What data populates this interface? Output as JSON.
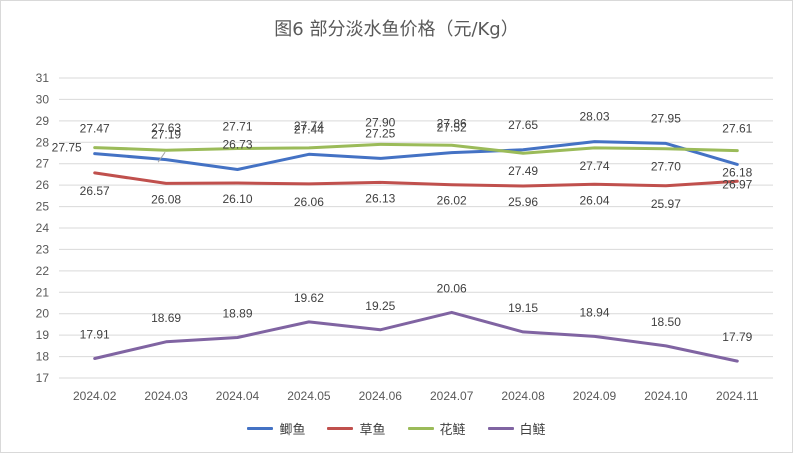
{
  "chart_data": {
    "type": "line",
    "title": "图6  部分淡水鱼价格（元/Kg）",
    "categories": [
      "2024.02",
      "2024.03",
      "2024.04",
      "2024.05",
      "2024.06",
      "2024.07",
      "2024.08",
      "2024.09",
      "2024.10",
      "2024.11"
    ],
    "ylim": [
      17,
      31
    ],
    "yticks": [
      17,
      18,
      19,
      20,
      21,
      22,
      23,
      24,
      25,
      26,
      27,
      28,
      29,
      30,
      31
    ],
    "grid": true,
    "legend_position": "bottom",
    "series": [
      {
        "name": "鲫鱼",
        "color": "#4472c4",
        "values": [
          27.47,
          27.19,
          26.73,
          27.44,
          27.25,
          27.52,
          27.65,
          28.03,
          27.95,
          26.97
        ],
        "labels": [
          "27.47",
          "27.19",
          "26.73",
          "27.44",
          "27.25",
          "27.52",
          "27.65",
          "28.03",
          "27.95",
          "26.97"
        ]
      },
      {
        "name": "草鱼",
        "color": "#c0504d",
        "values": [
          26.57,
          26.08,
          26.1,
          26.06,
          26.13,
          26.02,
          25.96,
          26.04,
          25.97,
          26.18
        ],
        "labels": [
          "26.57",
          "26.08",
          "26.10",
          "26.06",
          "26.13",
          "26.02",
          "25.96",
          "26.04",
          "25.97",
          "26.18"
        ]
      },
      {
        "name": "花鲢",
        "color": "#9bbb59",
        "values": [
          27.75,
          27.63,
          27.71,
          27.74,
          27.9,
          27.86,
          27.49,
          27.74,
          27.7,
          27.61
        ],
        "labels": [
          "27.75",
          "27.63",
          "27.71",
          "27.74",
          "27.90",
          "27.86",
          "27.49",
          "27.74",
          "27.70",
          "27.61"
        ]
      },
      {
        "name": "白鲢",
        "color": "#8064a2",
        "values": [
          17.91,
          18.69,
          18.89,
          19.62,
          19.25,
          20.06,
          19.15,
          18.94,
          18.5,
          17.79
        ],
        "labels": [
          "17.91",
          "18.69",
          "18.89",
          "19.62",
          "19.25",
          "20.06",
          "19.15",
          "18.94",
          "18.50",
          "17.79"
        ]
      }
    ]
  }
}
